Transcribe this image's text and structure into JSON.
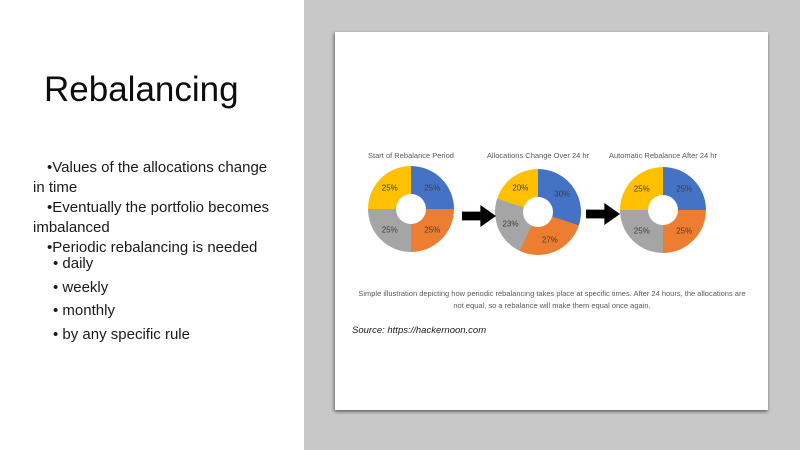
{
  "slide": {
    "title": "Rebalancing",
    "bullet_char": "•",
    "bullets": [
      "Values of the allocations change in time",
      "Eventually the portfolio becomes imbalanced",
      "Periodic rebalancing is needed"
    ],
    "sub_bullets": [
      "daily",
      "weekly",
      "monthly",
      "by any specific rule"
    ]
  },
  "figure": {
    "caption": "Simple illustration depicting how periodic rebalancing takes place at specific times. After 24 hours, the allocations are not equal, so a rebalance will make them equal once again.",
    "source": "Source: https://hackernoon.com"
  },
  "colors": {
    "background_gray": "#c8c8c8",
    "card_white": "#ffffff",
    "series_blue": "#4472c4",
    "series_orange": "#ed7d31",
    "series_gray": "#a5a5a5",
    "series_yellow": "#ffc000",
    "arrow_black": "#000000",
    "muted_text": "#595959"
  },
  "chart_data": [
    {
      "type": "pie",
      "subtype": "donut",
      "title": "Start of Rebalance Period",
      "start_angle_deg": 0,
      "direction": "clockwise",
      "slices": [
        {
          "value": 25,
          "label": "25%",
          "color": "#4472c4"
        },
        {
          "value": 25,
          "label": "25%",
          "color": "#ed7d31"
        },
        {
          "value": 25,
          "label": "25%",
          "color": "#a5a5a5"
        },
        {
          "value": 25,
          "label": "25%",
          "color": "#ffc000"
        }
      ]
    },
    {
      "type": "pie",
      "subtype": "donut",
      "title": "Allocations Change Over 24 hr",
      "start_angle_deg": 0,
      "direction": "clockwise",
      "slices": [
        {
          "value": 30,
          "label": "30%",
          "color": "#4472c4"
        },
        {
          "value": 27,
          "label": "27%",
          "color": "#ed7d31"
        },
        {
          "value": 23,
          "label": "23%",
          "color": "#a5a5a5"
        },
        {
          "value": 20,
          "label": "20%",
          "color": "#ffc000"
        }
      ]
    },
    {
      "type": "pie",
      "subtype": "donut",
      "title": "Automatic Rebalance After 24 hr",
      "start_angle_deg": 0,
      "direction": "clockwise",
      "slices": [
        {
          "value": 25,
          "label": "25%",
          "color": "#4472c4"
        },
        {
          "value": 25,
          "label": "25%",
          "color": "#ed7d31"
        },
        {
          "value": 25,
          "label": "25%",
          "color": "#a5a5a5"
        },
        {
          "value": 25,
          "label": "25%",
          "color": "#ffc000"
        }
      ]
    }
  ]
}
